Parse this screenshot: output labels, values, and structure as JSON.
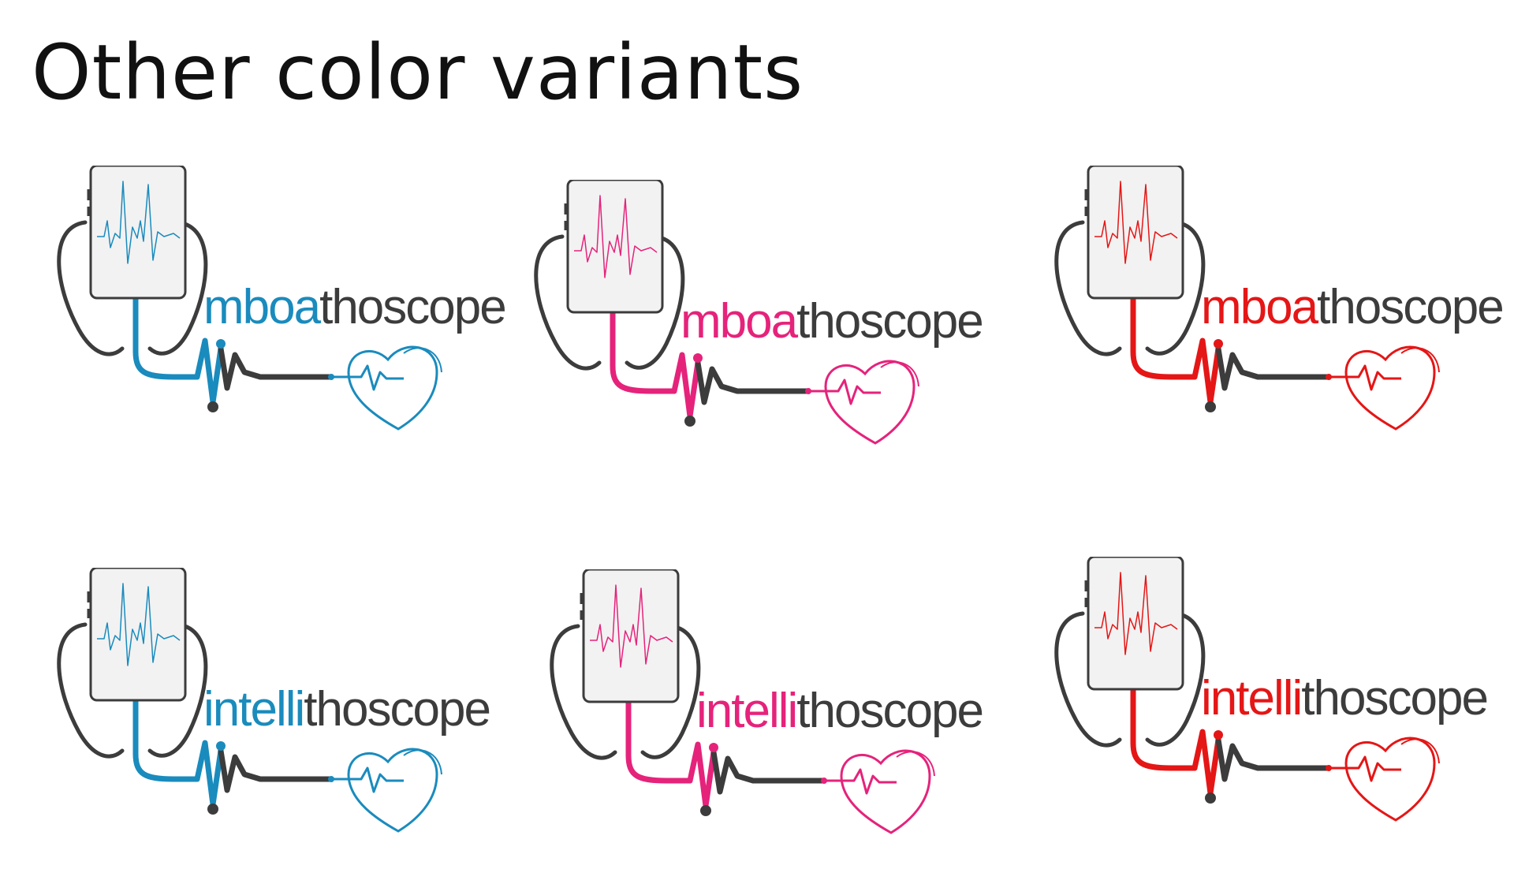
{
  "title": "Other color variants",
  "logos": [
    {
      "prefix": "mboa",
      "suffix": "thoscope",
      "color": "#1a8bbd"
    },
    {
      "prefix": "mboa",
      "suffix": "thoscope",
      "color": "#e5237b"
    },
    {
      "prefix": "mboa",
      "suffix": "thoscope",
      "color": "#e51616"
    },
    {
      "prefix": "intelli",
      "suffix": "thoscope",
      "color": "#1a8bbd"
    },
    {
      "prefix": "intelli",
      "suffix": "thoscope",
      "color": "#e5237b"
    },
    {
      "prefix": "intelli",
      "suffix": "thoscope",
      "color": "#e51616"
    }
  ],
  "cable_color": "#3c3c3c",
  "phone_fill": "#f2f2f2"
}
